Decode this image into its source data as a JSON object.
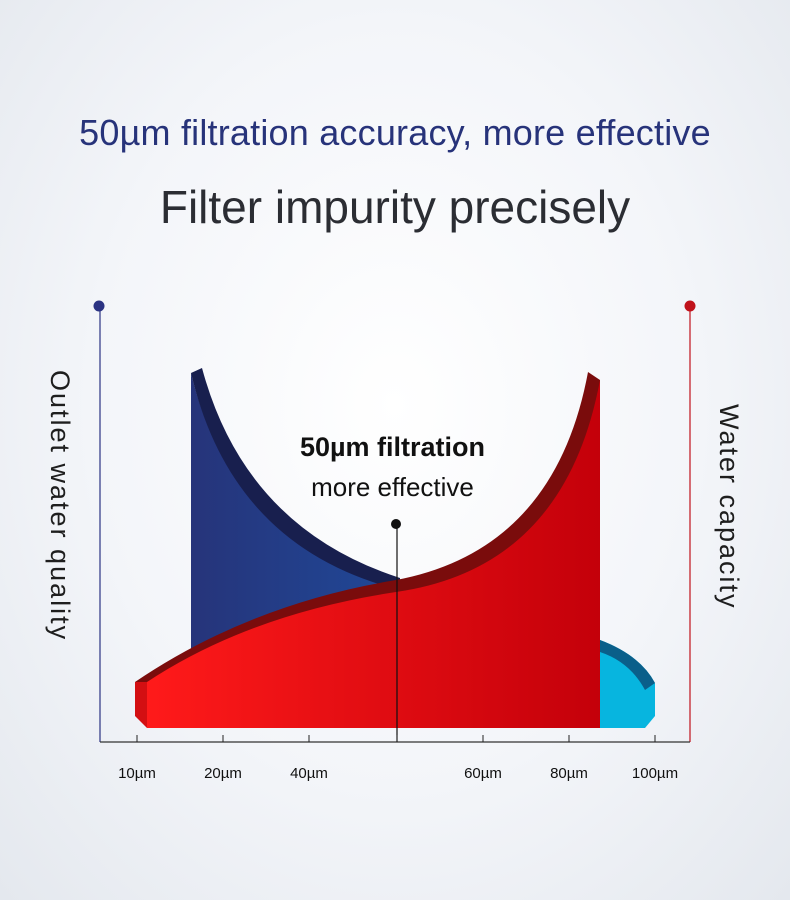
{
  "header": {
    "headline": "50µm filtration accuracy, more effective",
    "subheadline": "Filter impurity precisely"
  },
  "colors": {
    "headline": "#27337a",
    "quality_axis": "#2b3383",
    "capacity_axis": "#c0121b",
    "quality_fill_dark": "#27337a",
    "quality_fill_light": "#05b4e0",
    "capacity_fill": "#ff1a1a"
  },
  "chart_data": {
    "type": "area",
    "title": "50µm filtration accuracy, more effective",
    "left_axis_label": "Outlet water quality",
    "right_axis_label": "Water capacity",
    "x_ticks": [
      {
        "label": "10µm",
        "value": 10
      },
      {
        "label": "20µm",
        "value": 20
      },
      {
        "label": "40µm",
        "value": 40
      },
      {
        "label": "50µm",
        "value": 50,
        "show_label": false
      },
      {
        "label": "60µm",
        "value": 60
      },
      {
        "label": "80µm",
        "value": 80
      },
      {
        "label": "100µm",
        "value": 100
      }
    ],
    "series": [
      {
        "name": "Outlet water quality",
        "x": [
          15,
          20,
          30,
          40,
          50,
          60,
          80,
          100
        ],
        "values": [
          100,
          72,
          44,
          26,
          18,
          16,
          12,
          10
        ]
      },
      {
        "name": "Water capacity",
        "x": [
          10,
          20,
          30,
          40,
          50,
          60,
          70,
          80,
          85
        ],
        "values": [
          10,
          20,
          25,
          28,
          35,
          45,
          60,
          80,
          100
        ]
      }
    ],
    "highlight": {
      "x": 50,
      "title": "50µm filtration",
      "subtitle": "more effective"
    }
  }
}
